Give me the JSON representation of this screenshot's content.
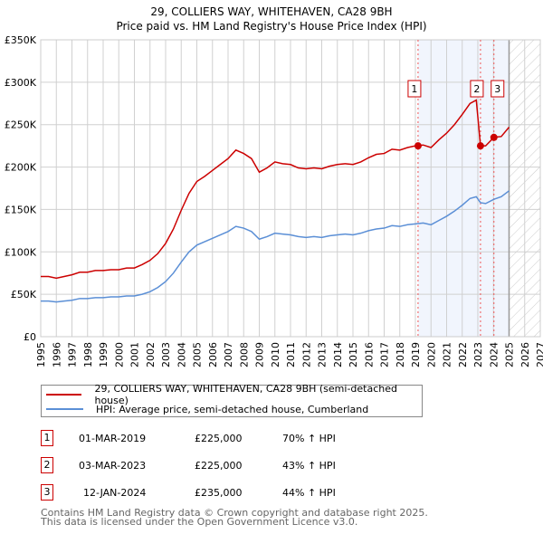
{
  "chart_data": {
    "type": "line",
    "title": "29, COLLIERS WAY, WHITEHAVEN, CA28 9BH",
    "subtitle": "Price paid vs. HM Land Registry's House Price Index (HPI)",
    "xlim": [
      1995,
      2027
    ],
    "ylim": [
      0,
      350000
    ],
    "x_ticks": [
      1995,
      1996,
      1997,
      1998,
      1999,
      2000,
      2001,
      2002,
      2003,
      2004,
      2005,
      2006,
      2007,
      2008,
      2009,
      2010,
      2011,
      2012,
      2013,
      2014,
      2015,
      2016,
      2017,
      2018,
      2019,
      2020,
      2021,
      2022,
      2023,
      2024,
      2025,
      2026,
      2027
    ],
    "y_ticks": [
      0,
      50000,
      100000,
      150000,
      200000,
      250000,
      300000,
      350000
    ],
    "y_tick_labels": [
      "£0",
      "£50K",
      "£100K",
      "£150K",
      "£200K",
      "£250K",
      "£300K",
      "£350K"
    ],
    "grid": true,
    "shaded_region": [
      2019.17,
      2025.0
    ],
    "forecast_hatch_from": 2025.0,
    "series": [
      {
        "name": "29, COLLIERS WAY, WHITEHAVEN, CA28 9BH (semi-detached house)",
        "color": "#cc0000",
        "x": [
          1995,
          1995.5,
          1996,
          1996.5,
          1997,
          1997.5,
          1998,
          1998.5,
          1999,
          1999.5,
          2000,
          2000.5,
          2001,
          2001.5,
          2002,
          2002.5,
          2003,
          2003.5,
          2004,
          2004.5,
          2005,
          2005.5,
          2006,
          2006.5,
          2007,
          2007.5,
          2008,
          2008.5,
          2009,
          2009.5,
          2010,
          2010.5,
          2011,
          2011.5,
          2012,
          2012.5,
          2013,
          2013.5,
          2014,
          2014.5,
          2015,
          2015.5,
          2016,
          2016.5,
          2017,
          2017.5,
          2018,
          2018.5,
          2019,
          2019.5,
          2020,
          2020.5,
          2021,
          2021.5,
          2022,
          2022.5,
          2022.9,
          2023.17,
          2023.5,
          2024.03,
          2024.5,
          2025
        ],
        "y": [
          71000,
          71000,
          69000,
          71000,
          73000,
          76000,
          76000,
          78000,
          78000,
          79000,
          79000,
          81000,
          81000,
          85000,
          90000,
          98000,
          110000,
          127000,
          149000,
          169000,
          183000,
          189000,
          196000,
          203000,
          210000,
          220000,
          216000,
          210000,
          194000,
          199000,
          206000,
          204000,
          203000,
          199000,
          198000,
          199000,
          198000,
          201000,
          203000,
          204000,
          203000,
          206000,
          211000,
          215000,
          216000,
          221000,
          220000,
          223000,
          225000,
          226000,
          223000,
          232000,
          240000,
          250000,
          262000,
          275000,
          279000,
          225000,
          225000,
          235000,
          236000,
          247000
        ]
      },
      {
        "name": "HPI: Average price, semi-detached house, Cumberland",
        "color": "#5b8fd6",
        "x": [
          1995,
          1995.5,
          1996,
          1996.5,
          1997,
          1997.5,
          1998,
          1998.5,
          1999,
          1999.5,
          2000,
          2000.5,
          2001,
          2001.5,
          2002,
          2002.5,
          2003,
          2003.5,
          2004,
          2004.5,
          2005,
          2005.5,
          2006,
          2006.5,
          2007,
          2007.5,
          2008,
          2008.5,
          2009,
          2009.5,
          2010,
          2010.5,
          2011,
          2011.5,
          2012,
          2012.5,
          2013,
          2013.5,
          2014,
          2014.5,
          2015,
          2015.5,
          2016,
          2016.5,
          2017,
          2017.5,
          2018,
          2018.5,
          2019,
          2019.5,
          2020,
          2020.5,
          2021,
          2021.5,
          2022,
          2022.5,
          2022.9,
          2023.17,
          2023.5,
          2024.03,
          2024.5,
          2025
        ],
        "y": [
          42000,
          42000,
          41000,
          42000,
          43000,
          45000,
          45000,
          46000,
          46000,
          47000,
          47000,
          48000,
          48000,
          50000,
          53000,
          58000,
          65000,
          75000,
          88000,
          100000,
          108000,
          112000,
          116000,
          120000,
          124000,
          130000,
          128000,
          124000,
          115000,
          118000,
          122000,
          121000,
          120000,
          118000,
          117000,
          118000,
          117000,
          119000,
          120000,
          121000,
          120000,
          122000,
          125000,
          127000,
          128000,
          131000,
          130000,
          132000,
          133000,
          134000,
          132000,
          137000,
          142000,
          148000,
          155000,
          163000,
          165000,
          158000,
          157000,
          162000,
          165000,
          172000
        ]
      }
    ],
    "sales": [
      {
        "label": "1",
        "x": 2019.17,
        "y": 225000
      },
      {
        "label": "2",
        "x": 2023.17,
        "y": 225000
      },
      {
        "label": "3",
        "x": 2024.03,
        "y": 235000
      }
    ]
  },
  "legend": {
    "property": "29, COLLIERS WAY, WHITEHAVEN, CA28 9BH (semi-detached house)",
    "hpi": "HPI: Average price, semi-detached house, Cumberland"
  },
  "transactions": [
    {
      "num": "1",
      "date": "01-MAR-2019",
      "price": "£225,000",
      "hpi": "70% ↑ HPI"
    },
    {
      "num": "2",
      "date": "03-MAR-2023",
      "price": "£225,000",
      "hpi": "43% ↑ HPI"
    },
    {
      "num": "3",
      "date": "12-JAN-2024",
      "price": "£235,000",
      "hpi": "44% ↑ HPI"
    }
  ],
  "footer": {
    "line1": "Contains HM Land Registry data © Crown copyright and database right 2025.",
    "line2": "This data is licensed under the Open Government Licence v3.0."
  }
}
